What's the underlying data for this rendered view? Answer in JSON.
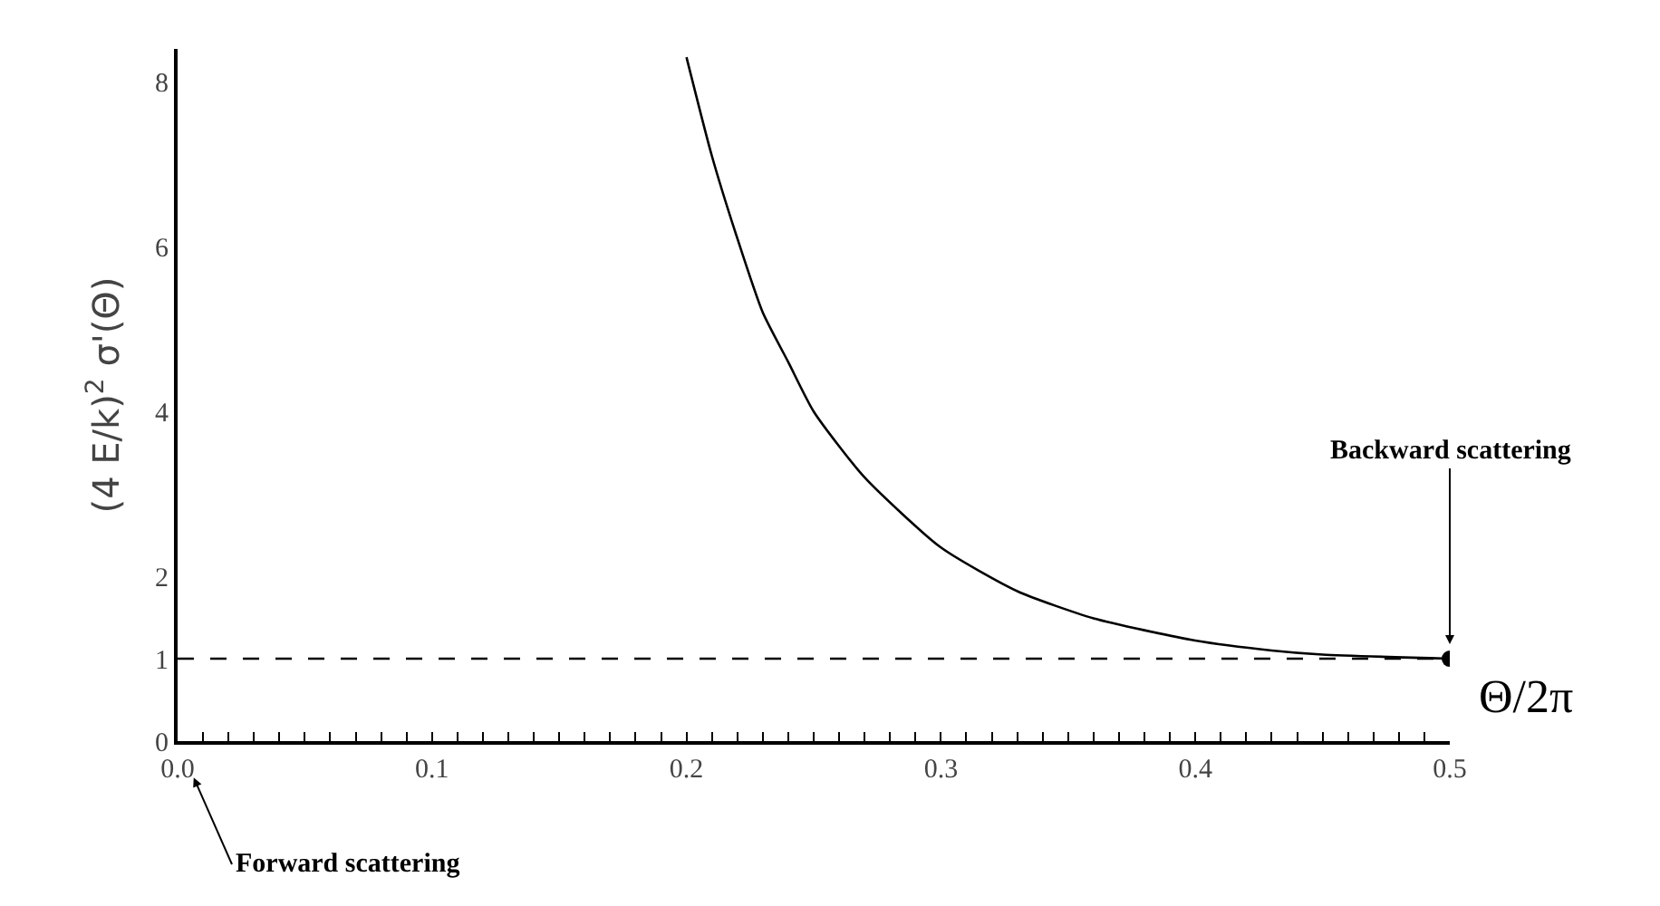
{
  "chart_data": {
    "type": "line",
    "xlabel": "Θ/2π",
    "ylabel": "(4 E/k)$^{2}$ σ'(Θ)",
    "xlim": [
      0,
      0.5
    ],
    "ylim": [
      0,
      8.4
    ],
    "xticks": [
      {
        "value": 0,
        "label": "0.0"
      },
      {
        "value": 0.01,
        "label": null
      },
      {
        "value": 0.02,
        "label": null
      },
      {
        "value": 0.03,
        "label": null
      },
      {
        "value": 0.04,
        "label": null
      },
      {
        "value": 0.05,
        "label": null
      },
      {
        "value": 0.06,
        "label": null
      },
      {
        "value": 0.07,
        "label": null
      },
      {
        "value": 0.08,
        "label": null
      },
      {
        "value": 0.09,
        "label": null
      },
      {
        "value": 0.1,
        "label": "0.1"
      },
      {
        "value": 0.11,
        "label": null
      },
      {
        "value": 0.12,
        "label": null
      },
      {
        "value": 0.13,
        "label": null
      },
      {
        "value": 0.14,
        "label": null
      },
      {
        "value": 0.15,
        "label": null
      },
      {
        "value": 0.16,
        "label": null
      },
      {
        "value": 0.17,
        "label": null
      },
      {
        "value": 0.18,
        "label": null
      },
      {
        "value": 0.19,
        "label": null
      },
      {
        "value": 0.2,
        "label": "0.2"
      },
      {
        "value": 0.21,
        "label": null
      },
      {
        "value": 0.22,
        "label": null
      },
      {
        "value": 0.23,
        "label": null
      },
      {
        "value": 0.24,
        "label": null
      },
      {
        "value": 0.25,
        "label": null
      },
      {
        "value": 0.26,
        "label": null
      },
      {
        "value": 0.27,
        "label": null
      },
      {
        "value": 0.28,
        "label": null
      },
      {
        "value": 0.29,
        "label": null
      },
      {
        "value": 0.3,
        "label": "0.3"
      },
      {
        "value": 0.31,
        "label": null
      },
      {
        "value": 0.32,
        "label": null
      },
      {
        "value": 0.33,
        "label": null
      },
      {
        "value": 0.34,
        "label": null
      },
      {
        "value": 0.35,
        "label": null
      },
      {
        "value": 0.36,
        "label": null
      },
      {
        "value": 0.37,
        "label": null
      },
      {
        "value": 0.38,
        "label": null
      },
      {
        "value": 0.39,
        "label": null
      },
      {
        "value": 0.4,
        "label": "0.4"
      },
      {
        "value": 0.41,
        "label": null
      },
      {
        "value": 0.42,
        "label": null
      },
      {
        "value": 0.43,
        "label": null
      },
      {
        "value": 0.44,
        "label": null
      },
      {
        "value": 0.45,
        "label": null
      },
      {
        "value": 0.46,
        "label": null
      },
      {
        "value": 0.47,
        "label": null
      },
      {
        "value": 0.48,
        "label": null
      },
      {
        "value": 0.49,
        "label": null
      },
      {
        "value": 0.5,
        "label": "0.5"
      }
    ],
    "yticks": [
      0,
      1,
      2,
      4,
      6,
      8
    ],
    "series": [
      {
        "type": "line",
        "color": "#000000",
        "marker": "none",
        "line_style": "solid",
        "x": [
          0.2,
          0.21,
          0.22,
          0.23,
          0.24,
          0.25,
          0.27,
          0.3,
          0.33,
          0.36,
          0.4,
          0.43,
          0.45,
          0.5
        ],
        "values": [
          8.3,
          7.1,
          6.1,
          5.2,
          4.6,
          4.0,
          3.2,
          2.35,
          1.82,
          1.49,
          1.22,
          1.1,
          1.05,
          1.0
        ]
      },
      {
        "type": "scatter",
        "color": "#000000",
        "marker": "circle",
        "x": [
          0.5
        ],
        "values": [
          1.0
        ]
      }
    ],
    "ref_lines": [
      {
        "axis": "y",
        "value": 1,
        "line_style": "dashed",
        "color": "#000000"
      }
    ],
    "annotations": [
      {
        "text": "Backward scattering",
        "x": 0.5,
        "y": 1
      },
      "Forward scattering"
    ]
  }
}
